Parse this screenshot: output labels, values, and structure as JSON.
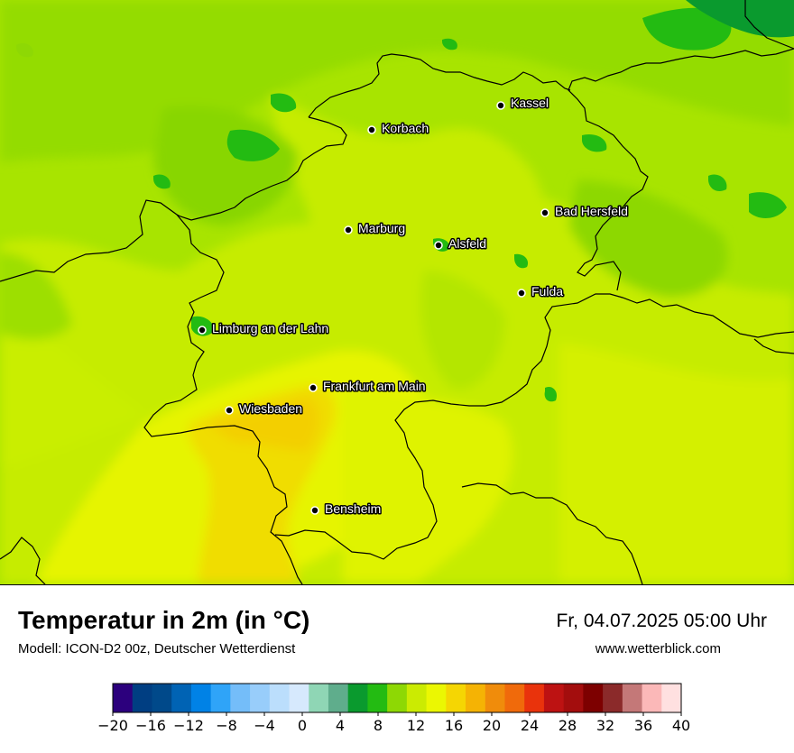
{
  "title": "Temperatur in 2m (in °C)",
  "model": "Modell: ICON-D2 00z, Deutscher Wetterdienst",
  "datetime": "Fr, 04.07.2025 05:00 Uhr",
  "website": "www.wetterblick.com",
  "cities": [
    {
      "name": "Kassel"
    },
    {
      "name": "Korbach"
    },
    {
      "name": "Bad Hersfeld"
    },
    {
      "name": "Marburg"
    },
    {
      "name": "Alsfeld"
    },
    {
      "name": "Fulda"
    },
    {
      "name": "Limburg an der Lahn"
    },
    {
      "name": "Frankfurt am Main"
    },
    {
      "name": "Wiesbaden"
    },
    {
      "name": "Bensheim"
    }
  ],
  "legend": {
    "colors": [
      "#2c007d",
      "#003e82",
      "#00498a",
      "#0063b4",
      "#0082e6",
      "#2fa4f8",
      "#74bdf9",
      "#98cdfa",
      "#bbdefc",
      "#d6e9fd",
      "#8fd6b5",
      "#5fad8c",
      "#0a9a2e",
      "#23bb12",
      "#8ed804",
      "#cbeb02",
      "#ebf702",
      "#f5d603",
      "#f5b304",
      "#f08c0b",
      "#f06a0b",
      "#e9330c",
      "#bd1212",
      "#a30d0d",
      "#7d0000",
      "#8b2a2a",
      "#c47878",
      "#fbb8b8",
      "#ffe0e0"
    ],
    "ticks": [
      "−20",
      "−16",
      "−12",
      "−8",
      "−4",
      "0",
      "4",
      "8",
      "12",
      "16",
      "20",
      "24",
      "28",
      "32",
      "36",
      "40"
    ]
  }
}
